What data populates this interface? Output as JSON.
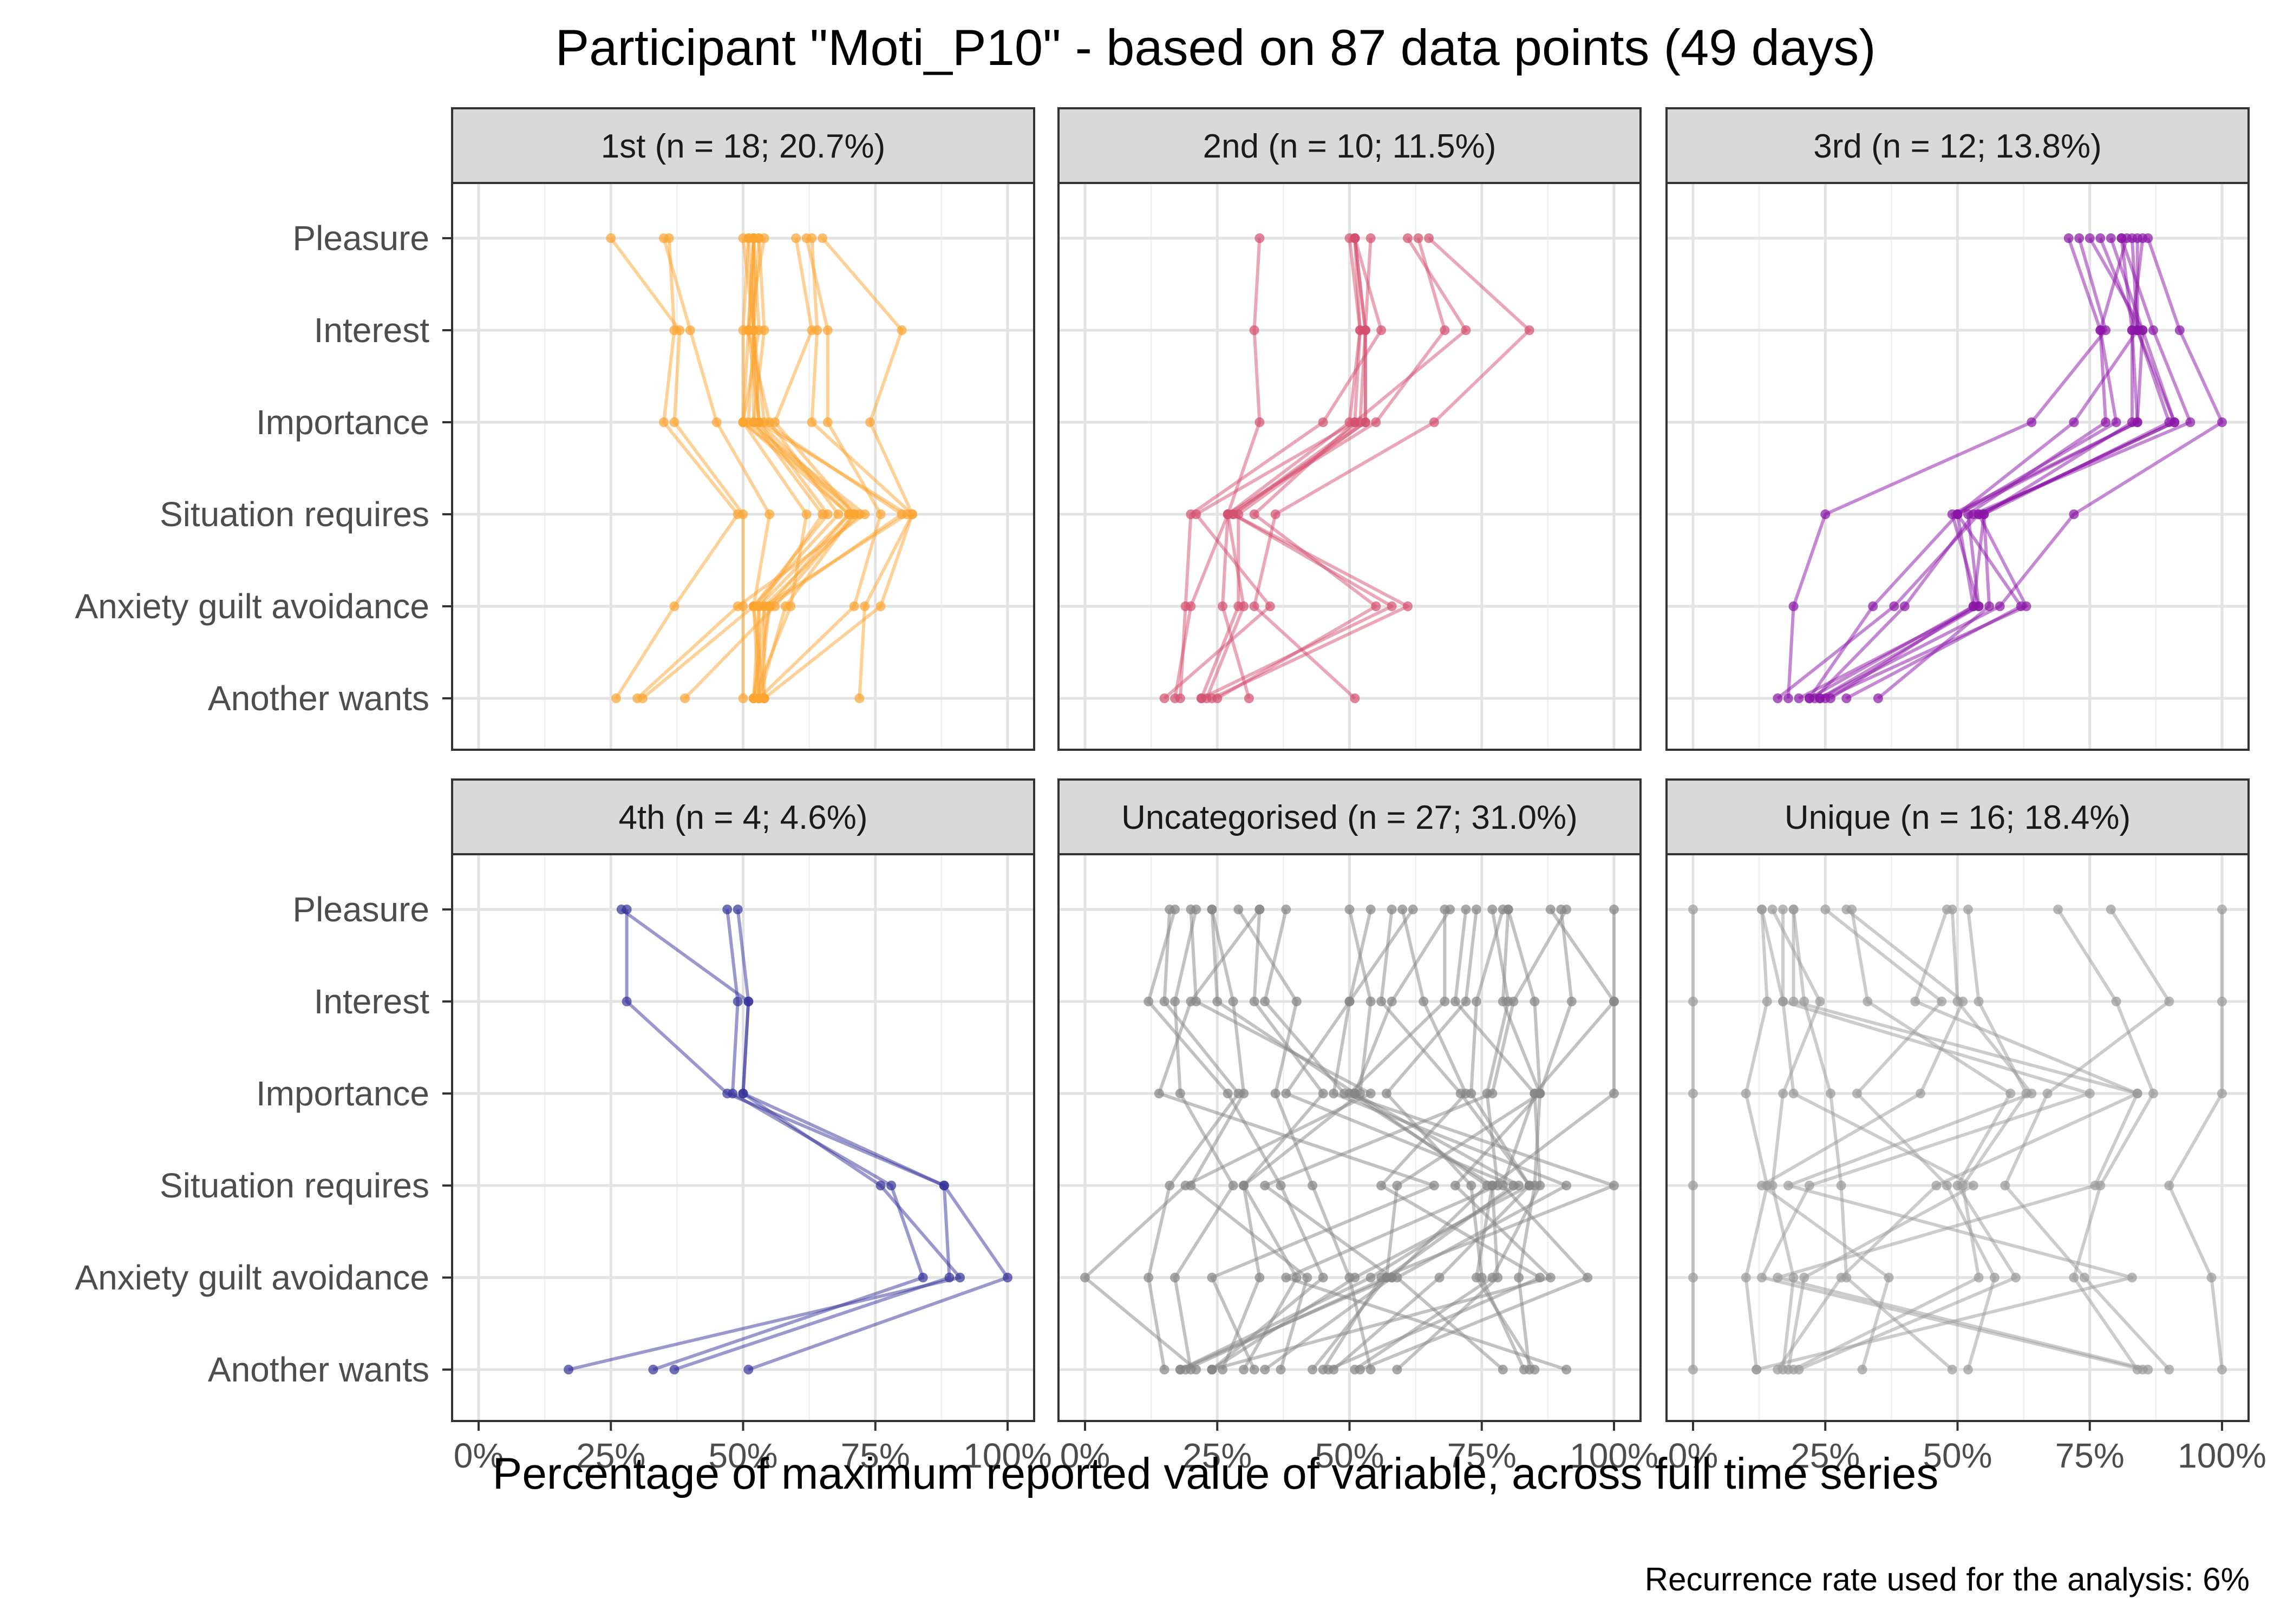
{
  "chart_data": {
    "type": "line",
    "title": "Participant \"Moti_P10\" - based on 87 data points (49 days)",
    "xlabel": "Percentage of maximum reported value of variable, across full time series",
    "caption": "Recurrence rate used for the analysis: 6%",
    "x_ticks": [
      "0%",
      "25%",
      "50%",
      "75%",
      "100%"
    ],
    "xlim": [
      0,
      100
    ],
    "variables": [
      "Pleasure",
      "Interest",
      "Importance",
      "Situation requires",
      "Anxiety guilt avoidance",
      "Another wants"
    ],
    "grid": true,
    "facets": [
      {
        "label": "1st (n = 18; 20.7%)",
        "color": "#FBA42F",
        "series": [
          {
            "values": [
              52,
              52,
              53,
              81,
              54,
              54
            ]
          },
          {
            "values": [
              52,
              51,
              50,
              70,
              55,
              52
            ]
          },
          {
            "values": [
              36,
              37,
              35,
              49,
              37,
              26
            ]
          },
          {
            "values": [
              53,
              54,
              52,
              65,
              53,
              53
            ]
          },
          {
            "values": [
              25,
              38,
              37,
              50,
              50,
              50
            ]
          },
          {
            "values": [
              60,
              63,
              56,
              71,
              58,
              53
            ]
          },
          {
            "values": [
              51,
              50,
              50,
              72,
              54,
              52
            ]
          },
          {
            "values": [
              63,
              64,
              63,
              82,
              73,
              72
            ]
          },
          {
            "values": [
              53,
              52,
              54,
              80,
              55,
              53
            ]
          },
          {
            "values": [
              52,
              52,
              51,
              73,
              49,
              30
            ]
          },
          {
            "values": [
              51,
              52,
              52,
              70,
              53,
              52
            ]
          },
          {
            "values": [
              65,
              80,
              74,
              82,
              76,
              54
            ]
          },
          {
            "values": [
              54,
              51,
              55,
              68,
              52,
              31
            ]
          },
          {
            "values": [
              50,
              52,
              53,
              71,
              56,
              39
            ]
          },
          {
            "values": [
              52,
              53,
              50,
              62,
              59,
              52
            ]
          },
          {
            "values": [
              35,
              40,
              45,
              55,
              52,
              53
            ]
          },
          {
            "values": [
              62,
              66,
              66,
              76,
              71,
              53
            ]
          },
          {
            "values": [
              52,
              51,
              53,
              66,
              52,
              54
            ]
          }
        ]
      },
      {
        "label": "2nd (n = 10; 11.5%)",
        "color": "#D4506F",
        "series": [
          {
            "values": [
              51,
              53,
              53,
              29,
              29,
              22
            ]
          },
          {
            "values": [
              50,
              52,
              50,
              27,
              20,
              17
            ]
          },
          {
            "values": [
              61,
              72,
              51,
              32,
              55,
              25
            ]
          },
          {
            "values": [
              33,
              32,
              33,
              27,
              26,
              31
            ]
          },
          {
            "values": [
              65,
              84,
              66,
              36,
              32,
              51
            ]
          },
          {
            "values": [
              51,
              56,
              45,
              20,
              19,
              18
            ]
          },
          {
            "values": [
              51,
              53,
              52,
              28,
              61,
              24
            ]
          },
          {
            "values": [
              63,
              68,
              55,
              27,
              30,
              23
            ]
          },
          {
            "values": [
              51,
              52,
              51,
              21,
              35,
              15
            ]
          },
          {
            "values": [
              54,
              53,
              53,
              28,
              58,
              22
            ]
          }
        ]
      },
      {
        "label": "3rd (n = 12; 13.8%)",
        "color": "#8A14A6",
        "series": [
          {
            "values": [
              83,
              84,
              90,
              55,
              53,
              22
            ]
          },
          {
            "values": [
              79,
              85,
              91,
              54,
              38,
              16
            ]
          },
          {
            "values": [
              85,
              83,
              84,
              49,
              54,
              24
            ]
          },
          {
            "values": [
              82,
              77,
              78,
              52,
              54,
              20
            ]
          },
          {
            "values": [
              73,
              78,
              64,
              25,
              19,
              18
            ]
          },
          {
            "values": [
              77,
              84,
              72,
              50,
              62,
              29
            ]
          },
          {
            "values": [
              81,
              83,
              83,
              55,
              56,
              35
            ]
          },
          {
            "values": [
              86,
              92,
              100,
              72,
              58,
              24
            ]
          },
          {
            "values": [
              84,
              84,
              91,
              54,
              63,
              25
            ]
          },
          {
            "values": [
              75,
              85,
              84,
              50,
              53,
              26
            ]
          },
          {
            "values": [
              71,
              77,
              80,
              50,
              34,
              22
            ]
          },
          {
            "values": [
              81,
              87,
              94,
              53,
              40,
              23
            ]
          }
        ]
      },
      {
        "label": "4th (n = 4; 4.6%)",
        "color": "#35329A",
        "series": [
          {
            "values": [
              28,
              28,
              47,
              88,
              89,
              37
            ]
          },
          {
            "values": [
              47,
              49,
              48,
              78,
              84,
              33
            ]
          },
          {
            "values": [
              49,
              51,
              50,
              88,
              100,
              51
            ]
          },
          {
            "values": [
              27,
              51,
              50,
              76,
              91,
              17
            ]
          }
        ]
      },
      {
        "label": "Uncategorised (n = 27; 31.0%)",
        "color": "#858585",
        "series": [
          {
            "values": [
              88,
              100,
              85,
              79,
              95,
              52
            ]
          },
          {
            "values": [
              74,
              72,
              57,
              73,
              75,
              83
            ]
          },
          {
            "values": [
              17,
              12,
              27,
              37,
              45,
              24
            ]
          },
          {
            "values": [
              91,
              81,
              77,
              34,
              58,
              34
            ]
          },
          {
            "values": [
              80,
              85,
              86,
              59,
              57,
              19
            ]
          },
          {
            "values": [
              24,
              25,
              51,
              76,
              58,
              18
            ]
          },
          {
            "values": [
              38,
              34,
              49,
              100,
              56,
              45
            ]
          },
          {
            "values": [
              68,
              68,
              50,
              77,
              78,
              59
            ]
          },
          {
            "values": [
              33,
              20,
              14,
              66,
              24,
              32
            ]
          },
          {
            "values": [
              21,
              17,
              18,
              28,
              17,
              20
            ]
          },
          {
            "values": [
              60,
              64,
              72,
              56,
              86,
              46
            ]
          },
          {
            "values": [
              100,
              100,
              100,
              77,
              74,
              85
            ]
          },
          {
            "values": [
              90,
              92,
              86,
              70,
              88,
              24
            ]
          },
          {
            "values": [
              58,
              56,
              71,
              84,
              51,
              24
            ]
          },
          {
            "values": [
              20,
              21,
              54,
              19,
              0,
              21
            ]
          },
          {
            "values": [
              54,
              50,
              38,
              81,
              57,
              43
            ]
          },
          {
            "values": [
              77,
              80,
              76,
              78,
              38,
              91
            ]
          },
          {
            "values": [
              72,
              70,
              85,
              86,
              77,
              51
            ]
          },
          {
            "values": [
              69,
              58,
              51,
              82,
              54,
              18
            ]
          },
          {
            "values": [
              50,
              54,
              52,
              30,
              40,
              30
            ]
          },
          {
            "values": [
              62,
              50,
              47,
              91,
              59,
              79
            ]
          },
          {
            "values": [
              16,
              15,
              29,
              16,
              12,
              15
            ]
          },
          {
            "values": [
              24,
              28,
              30,
              20,
              42,
              37
            ]
          },
          {
            "values": [
              79,
              74,
              73,
              84,
              67,
              47
            ]
          },
          {
            "values": [
              33,
              32,
              45,
              30,
              33,
              26
            ]
          },
          {
            "values": [
              80,
              79,
              86,
              85,
              82,
              84
            ]
          },
          {
            "values": [
              29,
              40,
              36,
              43,
              50,
              54
            ]
          }
        ]
      },
      {
        "label": "Unique (n = 16; 18.4%)",
        "color": "#9A9A9A",
        "series": [
          {
            "values": [
              0,
              0,
              0,
              0,
              0,
              0
            ]
          },
          {
            "values": [
              13,
              14,
              10,
              14,
              10,
              12
            ]
          },
          {
            "values": [
              100,
              100,
              100,
              90,
              98,
              100
            ]
          },
          {
            "values": [
              19,
              21,
              26,
              28,
              29,
              49
            ]
          },
          {
            "values": [
              69,
              80,
              87,
              77,
              72,
              84
            ]
          },
          {
            "values": [
              52,
              54,
              63,
              51,
              54,
              19
            ]
          },
          {
            "values": [
              48,
              42,
              84,
              76,
              16,
              86
            ]
          },
          {
            "values": [
              15,
              24,
              17,
              15,
              19,
              17
            ]
          },
          {
            "values": [
              17,
              17,
              75,
              22,
              13,
              85
            ]
          },
          {
            "values": [
              79,
              90,
              67,
              59,
              74,
              90
            ]
          },
          {
            "values": [
              30,
              33,
              60,
              50,
              61,
              20
            ]
          },
          {
            "values": [
              49,
              50,
              64,
              18,
              83,
              12
            ]
          },
          {
            "values": [
              19,
              19,
              84,
              46,
              28,
              16
            ]
          },
          {
            "values": [
              13,
              17,
              19,
              53,
              21,
              18
            ]
          },
          {
            "values": [
              29,
              51,
              43,
              13,
              37,
              32
            ]
          },
          {
            "values": [
              25,
              47,
              31,
              48,
              57,
              52
            ]
          }
        ]
      }
    ]
  }
}
